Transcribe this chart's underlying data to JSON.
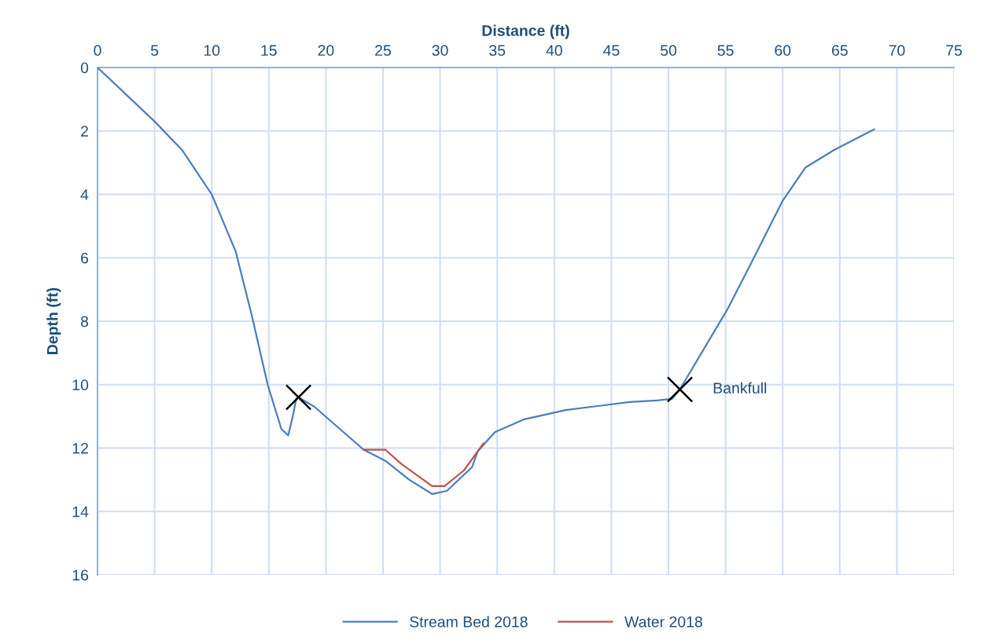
{
  "chart_data": {
    "type": "line",
    "xlabel": "Distance (ft)",
    "ylabel": "Depth (ft)",
    "xlim": [
      0,
      75
    ],
    "xticks": [
      0,
      5,
      10,
      15,
      20,
      25,
      30,
      35,
      40,
      45,
      50,
      55,
      60,
      65,
      70,
      75
    ],
    "ylim": [
      16,
      0
    ],
    "yticks": [
      0,
      2,
      4,
      6,
      8,
      10,
      12,
      14,
      16
    ],
    "grid": true,
    "legend": "bottom",
    "line_style": "solid",
    "series": [
      {
        "name": "Stream Bed 2018",
        "color": "#4a7ebb",
        "marker": "none",
        "x": [
          0,
          5,
          7.4,
          10,
          12.1,
          13.5,
          14.9,
          16.1,
          16.7,
          17.1,
          17.4,
          17.6,
          19,
          23.3,
          25.2,
          27.3,
          29.3,
          30.6,
          32.8,
          33.3,
          34.8,
          37.3,
          41,
          46.6,
          49,
          50.3,
          51,
          55.2,
          57.2,
          60,
          62,
          64.5,
          68
        ],
        "values": [
          0,
          1.7,
          2.6,
          4,
          5.8,
          7.8,
          10,
          11.4,
          11.6,
          11.0,
          10.45,
          10.4,
          10.7,
          12.05,
          12.4,
          13.0,
          13.45,
          13.35,
          12.6,
          12.1,
          11.5,
          11.1,
          10.8,
          10.55,
          10.5,
          10.45,
          10.15,
          7.6,
          6.2,
          4.2,
          3.15,
          2.6,
          1.95
        ]
      },
      {
        "name": "Water 2018",
        "color": "#c0504d",
        "marker": "none",
        "x": [
          23.3,
          25.2,
          26.6,
          29.3,
          30.4,
          32.1,
          33.8
        ],
        "values": [
          12.05,
          12.05,
          12.5,
          13.2,
          13.2,
          12.7,
          11.85
        ]
      },
      {
        "type": "scatter",
        "color": "#000000",
        "marker": "cross",
        "x": [
          17.6,
          51
        ],
        "values": [
          10.4,
          10.15
        ]
      }
    ],
    "annotations": [
      {
        "text": "Bankfull",
        "x": 51,
        "y": 10.15
      }
    ]
  }
}
